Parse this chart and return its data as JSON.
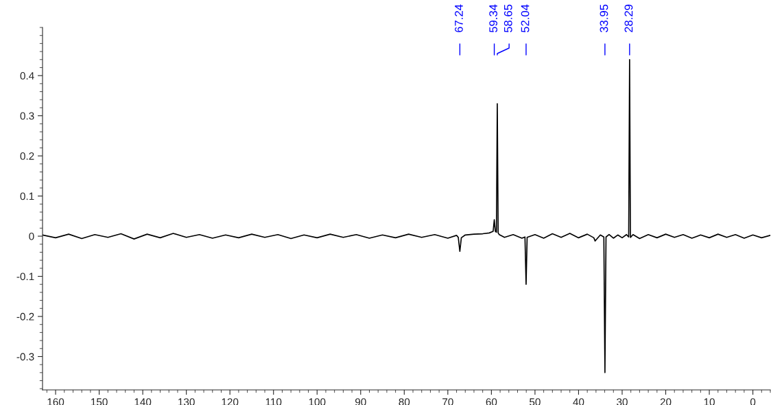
{
  "chart_data": {
    "type": "line",
    "x": [
      163,
      160,
      157,
      154,
      151,
      148,
      145,
      142,
      139,
      136,
      133,
      130,
      127,
      124,
      121,
      118,
      115,
      112,
      109,
      106,
      103,
      100,
      97,
      94,
      91,
      88,
      85,
      82,
      79,
      76,
      73,
      70,
      68,
      67.6,
      67.24,
      66.9,
      66,
      64,
      62,
      60.5,
      59.6,
      59.34,
      59.1,
      58.85,
      58.65,
      58.45,
      58.2,
      57,
      55,
      53,
      52.3,
      52.04,
      51.8,
      50,
      48,
      46,
      44,
      42,
      40,
      38,
      36.5,
      36.2,
      35,
      34.2,
      33.95,
      33.7,
      33,
      32,
      31,
      30,
      29,
      28.5,
      28.29,
      28.1,
      27.5,
      26,
      24,
      22,
      20,
      18,
      16,
      14,
      12,
      10,
      8,
      6,
      4,
      2,
      0,
      -2,
      -4
    ],
    "series": [
      {
        "color": "#000000",
        "values": [
          0.003,
          -0.004,
          0.005,
          -0.006,
          0.004,
          -0.003,
          0.006,
          -0.007,
          0.005,
          -0.004,
          0.007,
          -0.003,
          0.004,
          -0.005,
          0.003,
          -0.004,
          0.005,
          -0.003,
          0.004,
          -0.006,
          0.003,
          -0.004,
          0.005,
          -0.003,
          0.004,
          -0.005,
          0.003,
          -0.004,
          0.005,
          -0.003,
          0.004,
          -0.005,
          0.002,
          -0.003,
          -0.038,
          -0.004,
          0.003,
          0.005,
          0.006,
          0.008,
          0.012,
          0.041,
          0.012,
          0.01,
          0.33,
          0.008,
          0.004,
          -0.003,
          0.004,
          -0.005,
          -0.002,
          -0.12,
          -0.003,
          0.004,
          -0.005,
          0.006,
          -0.003,
          0.007,
          -0.004,
          0.005,
          -0.004,
          -0.012,
          0.003,
          -0.002,
          -0.34,
          -0.002,
          0.004,
          -0.005,
          0.003,
          -0.004,
          0.004,
          -0.002,
          0.44,
          -0.003,
          0.004,
          -0.006,
          0.004,
          -0.004,
          0.005,
          -0.003,
          0.004,
          -0.005,
          0.003,
          -0.004,
          0.005,
          -0.003,
          0.004,
          -0.005,
          0.003,
          -0.004,
          0.002
        ]
      }
    ],
    "xlim": [
      163,
      -4
    ],
    "xticks": [
      160,
      150,
      140,
      130,
      120,
      110,
      100,
      90,
      80,
      70,
      60,
      50,
      40,
      30,
      20,
      10,
      0
    ],
    "ylim": [
      -0.383,
      0.52
    ],
    "yticks": [
      -0.3,
      -0.2,
      -0.1,
      0,
      0.1,
      0.2,
      0.3,
      0.4
    ],
    "grid": false,
    "marker": "none",
    "line_style": "solid",
    "annotations": [
      {
        "text": "67.24",
        "x": 67.24
      },
      {
        "text": "59.34",
        "x": 59.34
      },
      {
        "text": "58.65",
        "x": 58.65
      },
      {
        "text": "52.04",
        "x": 52.04
      },
      {
        "text": "33.95",
        "x": 33.95
      },
      {
        "text": "28.29",
        "x": 28.29
      }
    ]
  }
}
